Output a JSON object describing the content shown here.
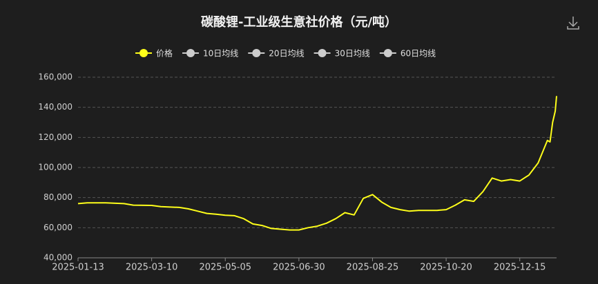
{
  "chart_data": {
    "type": "line",
    "title": "碳酸锂-工业级生意社价格（元/吨）",
    "x": [
      "2025-01-13",
      "2025-01-20",
      "2025-02-03",
      "2025-02-17",
      "2025-02-24",
      "2025-03-10",
      "2025-03-17",
      "2025-03-31",
      "2025-04-07",
      "2025-04-14",
      "2025-04-21",
      "2025-04-28",
      "2025-05-05",
      "2025-05-12",
      "2025-05-19",
      "2025-05-26",
      "2025-06-02",
      "2025-06-09",
      "2025-06-16",
      "2025-06-23",
      "2025-06-30",
      "2025-07-07",
      "2025-07-14",
      "2025-07-21",
      "2025-07-28",
      "2025-08-04",
      "2025-08-11",
      "2025-08-18",
      "2025-08-25",
      "2025-09-01",
      "2025-09-08",
      "2025-09-15",
      "2025-09-22",
      "2025-09-29",
      "2025-10-06",
      "2025-10-13",
      "2025-10-20",
      "2025-10-27",
      "2025-11-03",
      "2025-11-10",
      "2025-11-17",
      "2025-11-24",
      "2025-12-01",
      "2025-12-08",
      "2025-12-15",
      "2025-12-22",
      "2025-12-29",
      "2026-01-05",
      "2026-01-07",
      "2026-01-09",
      "2026-01-11",
      "2026-01-12"
    ],
    "series": [
      {
        "name": "价格",
        "color": "#ffff1a",
        "values": [
          76000,
          76500,
          76500,
          76000,
          75000,
          74800,
          74000,
          73500,
          72500,
          71000,
          69500,
          69000,
          68300,
          68000,
          66000,
          62500,
          61500,
          59500,
          59000,
          58500,
          58500,
          60000,
          61000,
          63000,
          66000,
          70000,
          68500,
          79500,
          82000,
          77000,
          73500,
          72000,
          71000,
          71500,
          71500,
          71500,
          72000,
          75000,
          78500,
          77500,
          84000,
          93000,
          91000,
          92000,
          91000,
          95000,
          103000,
          118000,
          117000,
          130000,
          137500,
          147500
        ]
      }
    ],
    "inactive_series": [
      {
        "name": "10日均线",
        "color": "#cccccc"
      },
      {
        "name": "20日均线",
        "color": "#cccccc"
      },
      {
        "name": "30日均线",
        "color": "#cccccc"
      },
      {
        "name": "60日均线",
        "color": "#cccccc"
      }
    ],
    "xlim": [
      "2025-01-13",
      "2026-01-12"
    ],
    "xticks": [
      "2025-01-13",
      "2025-03-10",
      "2025-05-05",
      "2025-06-30",
      "2025-08-25",
      "2025-10-20",
      "2025-12-15"
    ],
    "ylim": [
      40000,
      160000
    ],
    "yticks": [
      {
        "value": 40000,
        "label": "40,000"
      },
      {
        "value": 60000,
        "label": "60,000"
      },
      {
        "value": 80000,
        "label": "80,000"
      },
      {
        "value": 100000,
        "label": "100,000"
      },
      {
        "value": 120000,
        "label": "120,000"
      },
      {
        "value": 140000,
        "label": "140,000"
      },
      {
        "value": 160000,
        "label": "160,000"
      }
    ],
    "grid": true
  }
}
